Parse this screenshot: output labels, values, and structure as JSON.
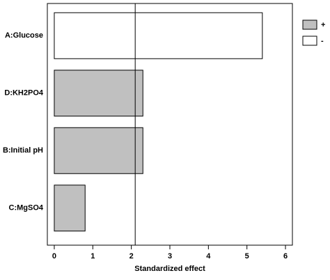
{
  "chart_data": {
    "type": "hbar",
    "xlabel": "Standardized effect",
    "categories": [
      "A:Glucose",
      "D:KH2PO4",
      "B:Initial pH",
      "C:MgSO4"
    ],
    "series": [
      {
        "name": "+",
        "color": "#c0c0c0",
        "values": [
          null,
          2.3,
          2.3,
          0.8
        ]
      },
      {
        "name": "-",
        "color": "#ffffff",
        "values": [
          5.4,
          null,
          null,
          null
        ]
      }
    ],
    "reference_line": 2.1,
    "xlim": [
      -0.18,
      6.18
    ],
    "xticks": [
      0,
      1,
      2,
      3,
      4,
      5,
      6
    ]
  }
}
